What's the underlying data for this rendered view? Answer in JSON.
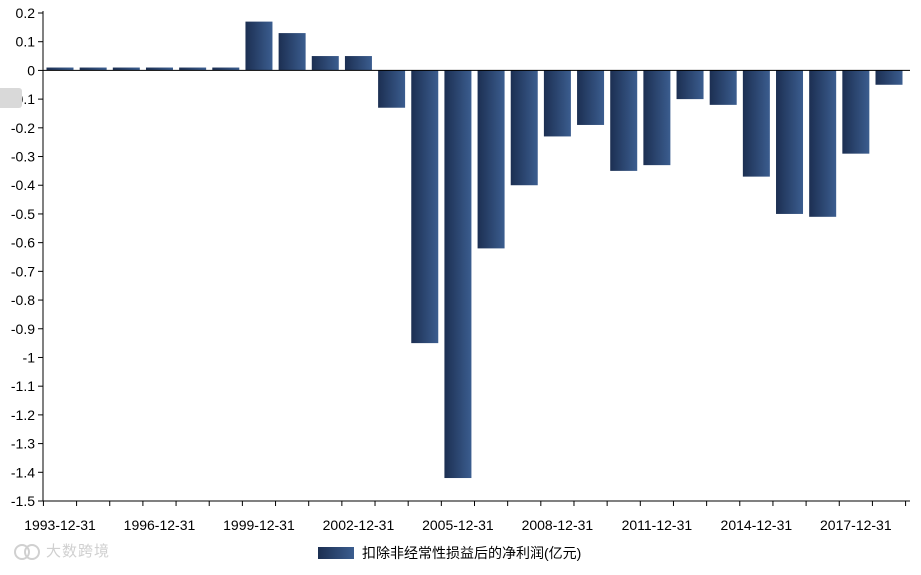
{
  "chart_data": {
    "type": "bar",
    "categories": [
      "1993-12-31",
      "1994-12-31",
      "1995-12-31",
      "1996-12-31",
      "1997-12-31",
      "1998-12-31",
      "1999-12-31",
      "2000-12-31",
      "2001-12-31",
      "2002-12-31",
      "2003-12-31",
      "2004-12-31",
      "2005-12-31",
      "2006-12-31",
      "2007-12-31",
      "2008-12-31",
      "2009-12-31",
      "2010-12-31",
      "2011-12-31",
      "2012-12-31",
      "2013-12-31",
      "2014-12-31",
      "2015-12-31",
      "2016-12-31",
      "2017-12-31",
      "2018-12-31"
    ],
    "x_tick_labels": [
      "1993-12-31",
      "1996-12-31",
      "1999-12-31",
      "2002-12-31",
      "2005-12-31",
      "2008-12-31",
      "2011-12-31",
      "2014-12-31",
      "2017-12-31"
    ],
    "series": [
      {
        "name": "扣除非经常性损益后的净利润(亿元)",
        "values": [
          0.01,
          0.01,
          0.01,
          0.01,
          0.01,
          0.01,
          0.17,
          0.13,
          0.05,
          0.05,
          -0.13,
          -0.95,
          -1.42,
          -0.62,
          -0.4,
          -0.23,
          -0.19,
          -0.35,
          -0.33,
          -0.1,
          -0.12,
          -0.37,
          -0.5,
          -0.51,
          -0.29,
          -0.05
        ]
      }
    ],
    "y_tick_labels": [
      "0.2",
      "0.1",
      "0",
      "-0.1",
      "-0.2",
      "-0.3",
      "-0.4",
      "-0.5",
      "-0.6",
      "-0.7",
      "-0.8",
      "-0.9",
      "-1",
      "-1.1",
      "-1.2",
      "-1.3",
      "-1.4",
      "-1.5"
    ],
    "ylim": [
      -1.5,
      0.2
    ],
    "xlabel": "",
    "ylabel": "",
    "grid": false,
    "legend_position": "bottom-center",
    "colors": {
      "bar_dark": "#1c2f52",
      "bar_light": "#3b5d8f",
      "axis": "#000000"
    }
  },
  "watermark": {
    "text": "大数跨境"
  }
}
